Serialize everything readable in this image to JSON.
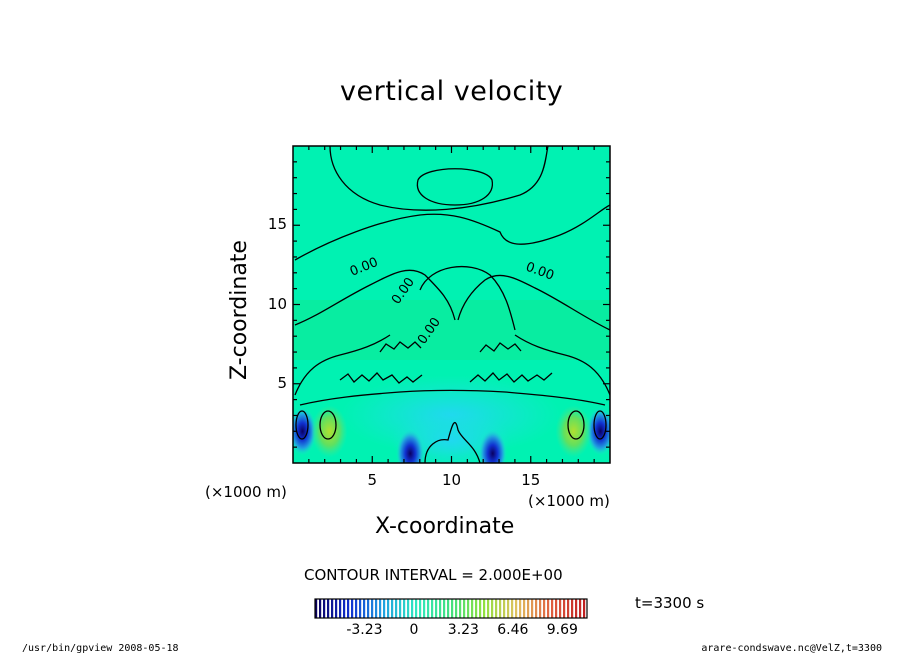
{
  "chart_data": {
    "type": "heatmap",
    "title": "vertical velocity",
    "xlabel": "X-coordinate",
    "ylabel": "Z-coordinate",
    "x_unit": "(×1000 m)",
    "y_unit": "(×1000 m)",
    "xlim": [
      0,
      20
    ],
    "ylim": [
      0,
      20
    ],
    "x_ticks": [
      5,
      10,
      15
    ],
    "y_ticks": [
      5,
      10,
      15
    ],
    "contour_interval_text": "CONTOUR INTERVAL = 2.000E+00",
    "contour_label": "0.00",
    "colorbar": {
      "ticks": [
        "-3.23",
        "0",
        "3.23",
        "6.46",
        "9.69"
      ],
      "range": [
        -6.46,
        11.3
      ],
      "colors": [
        "#0a0060",
        "#1030d0",
        "#20a0e0",
        "#30e8c0",
        "#40e080",
        "#90e040",
        "#e0c060",
        "#e06040",
        "#c02020"
      ]
    },
    "background_color": "#00f0b0",
    "features": [
      {
        "kind": "downdraft",
        "x": 0.6,
        "z": 2.0,
        "value": -6.0
      },
      {
        "kind": "downdraft",
        "x": 19.4,
        "z": 2.0,
        "value": -6.0
      },
      {
        "kind": "downdraft",
        "x": 7.4,
        "z": 0.6,
        "value": -5.0
      },
      {
        "kind": "downdraft",
        "x": 12.6,
        "z": 0.6,
        "value": -5.0
      },
      {
        "kind": "updraft",
        "x": 2.3,
        "z": 2.0,
        "value": 2.0
      },
      {
        "kind": "updraft",
        "x": 17.7,
        "z": 2.0,
        "value": 2.0
      }
    ],
    "time_label": "t=3300 s"
  },
  "footer": {
    "left": "/usr/bin/gpview  2008-05-18",
    "right": "arare-condswave.nc@VelZ,t=3300"
  }
}
